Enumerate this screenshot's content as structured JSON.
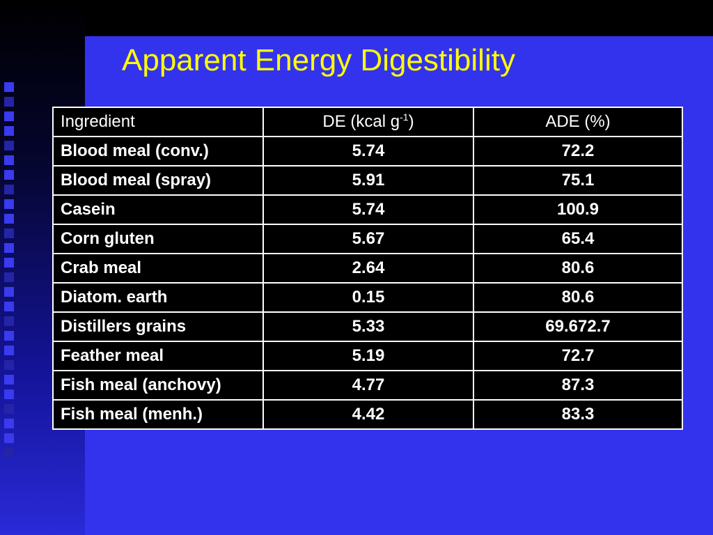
{
  "slide": {
    "title": "Apparent Energy Digestibility"
  },
  "table": {
    "headers": {
      "ingredient": "Ingredient",
      "de_prefix": "DE (kcal g",
      "de_sup": "-1",
      "de_suffix": ")",
      "ade": "ADE (%)"
    },
    "rows": [
      {
        "ingredient": "Blood meal (conv.)",
        "de": "5.74",
        "ade": "72.2"
      },
      {
        "ingredient": "Blood meal (spray)",
        "de": "5.91",
        "ade": "75.1"
      },
      {
        "ingredient": "Casein",
        "de": "5.74",
        "ade": "100.9"
      },
      {
        "ingredient": "Corn gluten",
        "de": "5.67",
        "ade": "65.4"
      },
      {
        "ingredient": "Crab meal",
        "de": "2.64",
        "ade": "80.6"
      },
      {
        "ingredient": "Diatom. earth",
        "de": "0.15",
        "ade": "80.6"
      },
      {
        "ingredient": "Distillers grains",
        "de": "5.33",
        "ade": "69.672.7"
      },
      {
        "ingredient": "Feather meal",
        "de": "5.19",
        "ade": "72.7"
      },
      {
        "ingredient": "Fish meal (anchovy)",
        "de": "4.77",
        "ade": "87.3"
      },
      {
        "ingredient": "Fish meal (menh.)",
        "de": "4.42",
        "ade": "83.3"
      }
    ]
  },
  "colors": {
    "background": "#3333ee",
    "title": "#ffff00",
    "table_bg": "#000000",
    "table_text": "#ffffff"
  }
}
